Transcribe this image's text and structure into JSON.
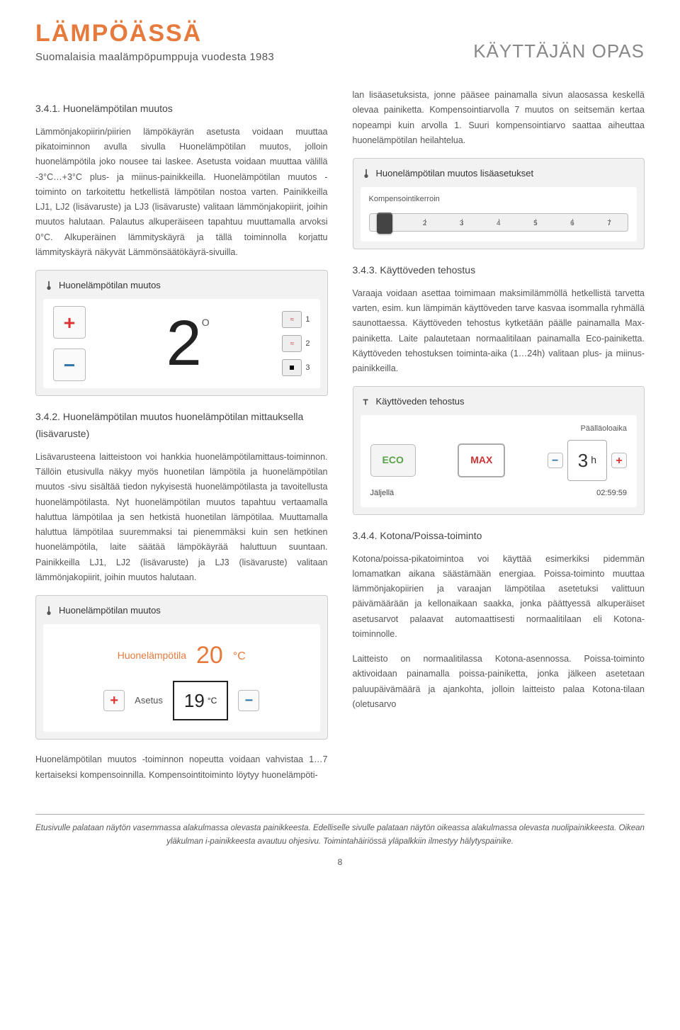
{
  "brand": {
    "name": "LÄMPÖÄSSÄ",
    "tagline": "Suomalaisia maalämpöpumppuja vuodesta 1983",
    "color": "#e67a3c"
  },
  "page_title": "KÄYTTÄJÄN OPAS",
  "left": {
    "sec1_heading": "3.4.1. Huonelämpötilan muutos",
    "sec1_para": "Lämmönjakopiirin/piirien lämpökäyrän asetusta voidaan muuttaa pikatoiminnon avulla sivulla Huonelämpötilan muutos, jolloin huonelämpötila joko nousee tai laskee. Asetusta voidaan muuttaa välillä -3°C…+3°C plus- ja miinus-painikkeilla. Huonelämpötilan muutos -toiminto on tarkoitettu hetkellistä lämpötilan nostoa varten. Painikkeilla LJ1, LJ2 (lisävaruste) ja LJ3 (lisävaruste) valitaan lämmönjakopiirit, joihin muutos halutaan. Palautus alkuperäiseen tapahtuu muuttamalla arvoksi 0°C. Alkuperäinen lämmityskäyrä ja tällä toiminnolla korjattu lämmityskäyrä näkyvät Lämmönsäätökäyrä-sivuilla.",
    "shot1": {
      "title": "Huonelämpötilan muutos",
      "value": "2",
      "unit": "O",
      "plus": "+",
      "minus": "−",
      "circuits": [
        "1",
        "2",
        "3"
      ]
    },
    "sec2_heading": "3.4.2. Huonelämpötilan muutos huonelämpötilan mittauksella (lisävaruste)",
    "sec2_para": "Lisävarusteena laitteistoon voi hankkia huonelämpötilamittaus-toiminnon. Tällöin etusivulla näkyy myös huonetilan lämpötila ja huonelämpötilan muutos -sivu sisältää tiedon nykyisestä huonelämpötilasta ja tavoitellusta huonelämpötilasta. Nyt huonelämpötilan muutos tapahtuu vertaamalla haluttua lämpötilaa ja sen hetkistä huonetilan lämpötilaa. Muuttamalla haluttua lämpötilaa suuremmaksi tai pienemmäksi kuin sen hetkinen huonelämpötila, laite säätää lämpökäyrää haluttuun suuntaan. Painikkeilla LJ1, LJ2 (lisävaruste) ja LJ3 (lisävaruste) valitaan lämmönjakopiirit, joihin muutos halutaan.",
    "shot2": {
      "title": "Huonelämpötilan muutos",
      "label_current": "Huonelämpötila",
      "current": "20",
      "unit_big": "°C",
      "label_set": "Asetus",
      "set_value": "19",
      "unit_small": "°C",
      "plus": "+",
      "minus": "−"
    },
    "tail_para": "Huonelämpötilan muutos -toiminnon nopeutta voidaan vahvistaa 1…7 kertaiseksi kompensoinnilla. Kompensointitoiminto löytyy huonelämpöti-"
  },
  "right": {
    "cont_para": "lan lisäasetuksista, jonne pääsee painamalla sivun alaosassa keskellä olevaa painiketta. Kompensointiarvolla 7 muutos on seitsemän kertaa nopeampi kuin arvolla 1. Suuri kompensointiarvo saattaa aiheuttaa huonelämpötilan heilahtelua.",
    "shot3": {
      "title": "Huonelämpötilan muutos lisäasetukset",
      "sublabel": "Kompensointikerroin",
      "ticks": [
        "1",
        "2",
        "3",
        "4",
        "5",
        "6",
        "7"
      ],
      "handle_position_pct": 3
    },
    "sec3_heading": "3.4.3. Käyttöveden tehostus",
    "sec3_para": "Varaaja voidaan asettaa toimimaan maksimilämmöllä hetkellistä tarvetta varten, esim. kun lämpimän käyttöveden tarve kasvaa isommalla ryhmällä saunottaessa. Käyttöveden tehostus kytketään päälle painamalla Max-painiketta. Laite palautetaan normaalitilaan painamalla Eco-painiketta. Käyttöveden tehostuksen toiminta-aika (1…24h) valitaan plus- ja miinus- painikkeilla.",
    "shot4": {
      "title": "Käyttöveden tehostus",
      "top_label": "Päälläoloaika",
      "eco": "ECO",
      "max": "MAX",
      "hours": "3",
      "hours_unit": "h",
      "plus": "+",
      "minus": "−",
      "remaining_label": "Jäljellä",
      "remaining_value": "02:59:59"
    },
    "sec4_heading": "3.4.4. Kotona/Poissa-toiminto",
    "sec4_para1": "Kotona/poissa-pikatoimintoa voi käyttää esimerkiksi pidemmän lomamatkan aikana säästämään energiaa. Poissa-toiminto muuttaa lämmönjakopiirien ja varaajan lämpötilaa asetetuksi valittuun päivämäärään ja kellonaikaan saakka, jonka päättyessä alkuperäiset asetusarvot palaavat automaattisesti normaalitilaan eli Kotona-toiminnolle.",
    "sec4_para2": "Laitteisto on normaalitilassa Kotona-asennossa. Poissa-toiminto aktivoidaan painamalla poissa-painiketta, jonka jälkeen asetetaan paluupäivämäärä ja ajankohta, jolloin laitteisto palaa Kotona-tilaan (oletusarvo"
  },
  "footer": {
    "text": "Etusivulle palataan näytön vasemmassa alakulmassa olevasta painikkeesta. Edelliselle sivulle palataan näytön oikeassa alakulmassa olevasta nuolipainikkeesta. Oikean yläkulman i-painikkeesta avautuu ohjesivu. Toimintahäiriössä yläpalkkiin ilmestyy hälytyspainike.",
    "page": "8"
  }
}
